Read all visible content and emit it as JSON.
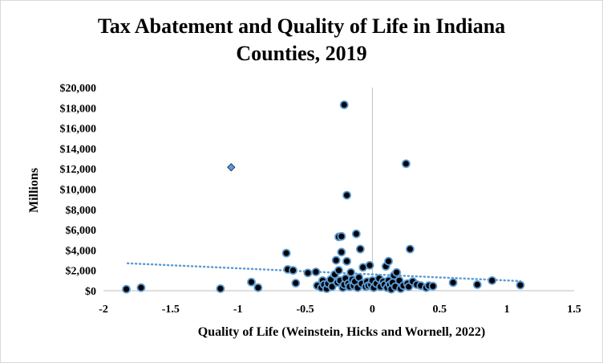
{
  "chart_data": {
    "type": "scatter",
    "title_line1": "Tax Abatement and Quality of Life in Indiana",
    "title_line2": "Counties, 2019",
    "xlabel": "Quality of Life (Weinstein, Hicks and Wornell,  2022)",
    "ylabel": "Millions",
    "xlim": [
      -2,
      1.5
    ],
    "ylim": [
      0,
      20000
    ],
    "x_ticks": [
      -2,
      -1.5,
      -1,
      -0.5,
      0,
      0.5,
      1,
      1.5
    ],
    "x_tick_labels": [
      "-2",
      "-1.5",
      "-1",
      "-0.5",
      "0",
      "0.5",
      "1",
      "1.5"
    ],
    "y_ticks": [
      0,
      2000,
      4000,
      6000,
      8000,
      10000,
      12000,
      14000,
      16000,
      18000,
      20000
    ],
    "y_tick_labels": [
      "$0",
      "$2,000",
      "$4,000",
      "$6,000",
      "$8,000",
      "$10,000",
      "$12,000",
      "$14,000",
      "$16,000",
      "$18,000",
      "$20,000"
    ],
    "grid": false,
    "legend": "none",
    "marker_fill": "#000000",
    "marker_edge": "#5b9bd5",
    "trendline_color": "#5b9bd5",
    "trendline": {
      "x": [
        -1.82,
        1.1
      ],
      "y": [
        2700,
        950
      ]
    },
    "outlier_diamond": {
      "x": -1.05,
      "y": 12150
    },
    "points": [
      {
        "x": -1.83,
        "y": 150
      },
      {
        "x": -1.72,
        "y": 300
      },
      {
        "x": -1.13,
        "y": 200
      },
      {
        "x": -0.9,
        "y": 850
      },
      {
        "x": -0.85,
        "y": 300
      },
      {
        "x": -0.64,
        "y": 3700
      },
      {
        "x": -0.63,
        "y": 2100
      },
      {
        "x": -0.59,
        "y": 2000
      },
      {
        "x": -0.57,
        "y": 750
      },
      {
        "x": -0.48,
        "y": 1750
      },
      {
        "x": -0.42,
        "y": 1850
      },
      {
        "x": -0.41,
        "y": 500
      },
      {
        "x": -0.38,
        "y": 300
      },
      {
        "x": -0.37,
        "y": 1000
      },
      {
        "x": -0.36,
        "y": 600
      },
      {
        "x": -0.34,
        "y": 200
      },
      {
        "x": -0.33,
        "y": 700
      },
      {
        "x": -0.31,
        "y": 1100
      },
      {
        "x": -0.3,
        "y": 400
      },
      {
        "x": -0.28,
        "y": 1600
      },
      {
        "x": -0.27,
        "y": 3000
      },
      {
        "x": -0.26,
        "y": 800
      },
      {
        "x": -0.25,
        "y": 2000
      },
      {
        "x": -0.25,
        "y": 5300
      },
      {
        "x": -0.24,
        "y": 1000
      },
      {
        "x": -0.23,
        "y": 5350
      },
      {
        "x": -0.23,
        "y": 3800
      },
      {
        "x": -0.22,
        "y": 300
      },
      {
        "x": -0.21,
        "y": 18300
      },
      {
        "x": -0.21,
        "y": 600
      },
      {
        "x": -0.2,
        "y": 1200
      },
      {
        "x": -0.19,
        "y": 9400
      },
      {
        "x": -0.19,
        "y": 2900
      },
      {
        "x": -0.18,
        "y": 700
      },
      {
        "x": -0.17,
        "y": 400
      },
      {
        "x": -0.16,
        "y": 1800
      },
      {
        "x": -0.15,
        "y": 1100
      },
      {
        "x": -0.14,
        "y": 500
      },
      {
        "x": -0.13,
        "y": 900
      },
      {
        "x": -0.12,
        "y": 5600
      },
      {
        "x": -0.11,
        "y": 300
      },
      {
        "x": -0.1,
        "y": 1300
      },
      {
        "x": -0.09,
        "y": 4100
      },
      {
        "x": -0.08,
        "y": 700
      },
      {
        "x": -0.07,
        "y": 2300
      },
      {
        "x": -0.05,
        "y": 400
      },
      {
        "x": -0.04,
        "y": 900
      },
      {
        "x": -0.03,
        "y": 500
      },
      {
        "x": -0.02,
        "y": 2500
      },
      {
        "x": -0.01,
        "y": 600
      },
      {
        "x": 0.0,
        "y": 1000
      },
      {
        "x": 0.01,
        "y": 300
      },
      {
        "x": 0.03,
        "y": 700
      },
      {
        "x": 0.05,
        "y": 1200
      },
      {
        "x": 0.06,
        "y": 400
      },
      {
        "x": 0.08,
        "y": 900
      },
      {
        "x": 0.09,
        "y": 600
      },
      {
        "x": 0.1,
        "y": 2400
      },
      {
        "x": 0.11,
        "y": 300
      },
      {
        "x": 0.12,
        "y": 1000
      },
      {
        "x": 0.12,
        "y": 2900
      },
      {
        "x": 0.13,
        "y": 600
      },
      {
        "x": 0.14,
        "y": 150
      },
      {
        "x": 0.15,
        "y": 800
      },
      {
        "x": 0.16,
        "y": 1500
      },
      {
        "x": 0.17,
        "y": 400
      },
      {
        "x": 0.18,
        "y": 1800
      },
      {
        "x": 0.2,
        "y": 1000
      },
      {
        "x": 0.21,
        "y": 200
      },
      {
        "x": 0.23,
        "y": 500
      },
      {
        "x": 0.25,
        "y": 12500
      },
      {
        "x": 0.26,
        "y": 700
      },
      {
        "x": 0.27,
        "y": 400
      },
      {
        "x": 0.28,
        "y": 4100
      },
      {
        "x": 0.3,
        "y": 900
      },
      {
        "x": 0.33,
        "y": 600
      },
      {
        "x": 0.36,
        "y": 500
      },
      {
        "x": 0.4,
        "y": 300
      },
      {
        "x": 0.42,
        "y": 500
      },
      {
        "x": 0.45,
        "y": 450
      },
      {
        "x": 0.6,
        "y": 800
      },
      {
        "x": 0.78,
        "y": 600
      },
      {
        "x": 0.89,
        "y": 1000
      },
      {
        "x": 1.1,
        "y": 550
      }
    ]
  }
}
